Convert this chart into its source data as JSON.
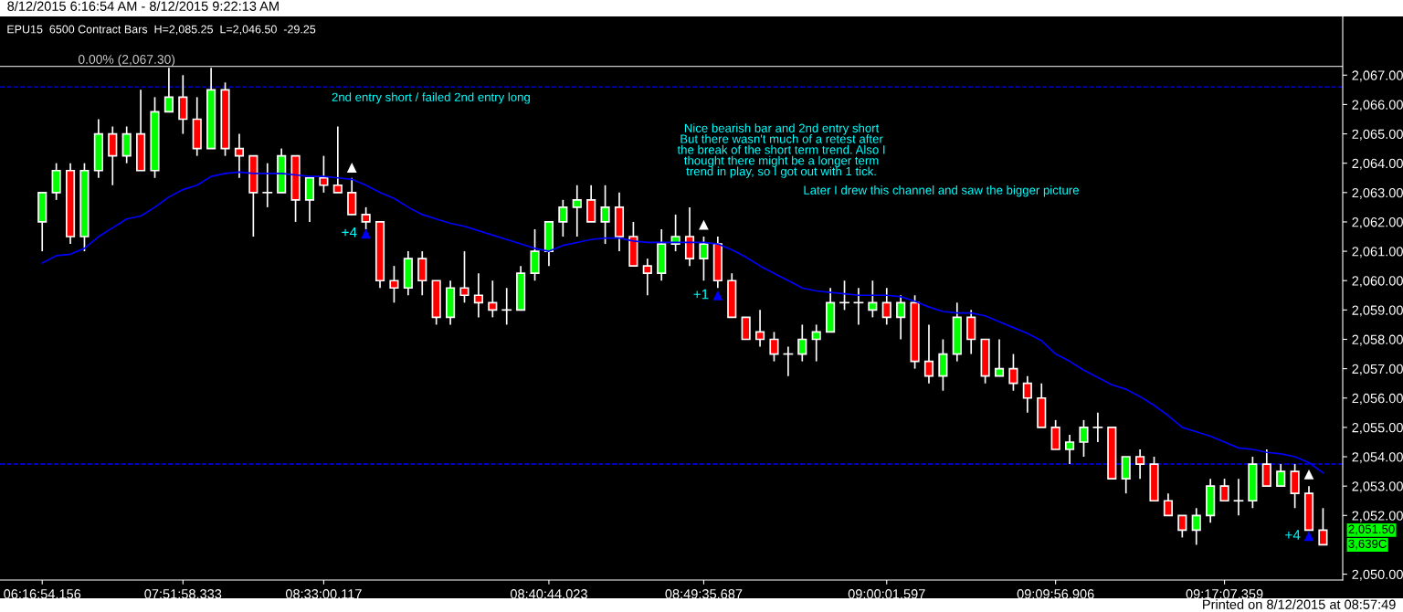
{
  "chart_data": {
    "type": "candlestick",
    "title": "8/12/2015 6:16:54 AM - 8/12/2015 9:22:13 AM",
    "subtitle": "EPU15  6500 Contract Bars  H=2,085.25  L=2,046.50  -29.25",
    "categories": [
      "06:16:54.156",
      null,
      null,
      null,
      null,
      null,
      null,
      null,
      null,
      null,
      "07:51:58.333",
      null,
      null,
      null,
      null,
      null,
      null,
      null,
      null,
      null,
      "08:33:00.117",
      null,
      null,
      null,
      null,
      null,
      null,
      null,
      null,
      null,
      null,
      null,
      null,
      null,
      null,
      null,
      "08:40:44.023",
      null,
      null,
      null,
      null,
      null,
      null,
      null,
      null,
      null,
      null,
      "08:49:35.687",
      null,
      null,
      null,
      null,
      null,
      null,
      null,
      null,
      null,
      null,
      null,
      null,
      "09:00:01.597",
      null,
      null,
      null,
      null,
      null,
      null,
      null,
      null,
      null,
      null,
      null,
      "09:09:56.906",
      null,
      null,
      null,
      null,
      null,
      null,
      null,
      null,
      null,
      null,
      null,
      "09:17:07.359",
      null,
      null,
      null,
      null,
      null,
      null,
      null
    ],
    "ohlc": [
      [
        2062,
        2063,
        2061,
        2063
      ],
      [
        2063,
        2064,
        2062.75,
        2063.75
      ],
      [
        2063.75,
        2064,
        2061.25,
        2061.5
      ],
      [
        2061.5,
        2064,
        2061,
        2063.75
      ],
      [
        2063.75,
        2065.5,
        2063.5,
        2065
      ],
      [
        2065,
        2065.25,
        2063.25,
        2064.25
      ],
      [
        2064.25,
        2065.25,
        2064,
        2065
      ],
      [
        2065,
        2066.5,
        2063.75,
        2063.75
      ],
      [
        2063.75,
        2066.25,
        2063.5,
        2065.75
      ],
      [
        2065.75,
        2067.25,
        2065.75,
        2066.25
      ],
      [
        2066.25,
        2067,
        2065,
        2065.5
      ],
      [
        2065.5,
        2066.25,
        2064.25,
        2064.5
      ],
      [
        2064.5,
        2067.25,
        2064.5,
        2066.5
      ],
      [
        2066.5,
        2066.75,
        2064.25,
        2064.5
      ],
      [
        2064.5,
        2065,
        2063.5,
        2064.25
      ],
      [
        2064.25,
        2064.25,
        2061.5,
        2063
      ],
      [
        2063,
        2064,
        2062.5,
        2063
      ],
      [
        2063,
        2064.5,
        2063,
        2064.25
      ],
      [
        2064.25,
        2064.25,
        2062,
        2062.75
      ],
      [
        2062.75,
        2063.5,
        2062,
        2063.5
      ],
      [
        2063.5,
        2064.25,
        2063,
        2063.25
      ],
      [
        2063.25,
        2065.25,
        2063,
        2063
      ],
      [
        2063,
        2063.5,
        2062.25,
        2062.25
      ],
      [
        2062.25,
        2062.5,
        2061.75,
        2062
      ],
      [
        2062,
        2062,
        2059.75,
        2060
      ],
      [
        2060,
        2060.5,
        2059.25,
        2059.75
      ],
      [
        2059.75,
        2061,
        2059.5,
        2060.75
      ],
      [
        2060.75,
        2061,
        2059.5,
        2060
      ],
      [
        2060,
        2060,
        2058.5,
        2058.75
      ],
      [
        2058.75,
        2060,
        2058.5,
        2059.75
      ],
      [
        2059.75,
        2061,
        2059.25,
        2059.5
      ],
      [
        2059.5,
        2060.25,
        2058.75,
        2059.25
      ],
      [
        2059.25,
        2060,
        2058.75,
        2059
      ],
      [
        2059,
        2059.75,
        2058.5,
        2059
      ],
      [
        2059,
        2060.5,
        2059,
        2060.25
      ],
      [
        2060.25,
        2061.75,
        2060,
        2061
      ],
      [
        2061,
        2062,
        2060.5,
        2062
      ],
      [
        2062,
        2062.75,
        2061.5,
        2062.5
      ],
      [
        2062.5,
        2063.25,
        2061.5,
        2062.75
      ],
      [
        2062.75,
        2063.25,
        2062,
        2062
      ],
      [
        2062,
        2063.25,
        2061.25,
        2062.5
      ],
      [
        2062.5,
        2063,
        2061,
        2061.5
      ],
      [
        2061.5,
        2062,
        2060.5,
        2060.5
      ],
      [
        2060.5,
        2060.75,
        2059.5,
        2060.25
      ],
      [
        2060.25,
        2061.75,
        2060,
        2061.25
      ],
      [
        2061.25,
        2062.25,
        2061,
        2061.5
      ],
      [
        2061.5,
        2062.5,
        2060.5,
        2060.75
      ],
      [
        2060.75,
        2061.5,
        2060,
        2061.25
      ],
      [
        2061.25,
        2061.5,
        2059.75,
        2060
      ],
      [
        2060,
        2060.25,
        2058.75,
        2058.75
      ],
      [
        2058.75,
        2058.75,
        2058,
        2058
      ],
      [
        2058.25,
        2059,
        2057.75,
        2058
      ],
      [
        2058,
        2058.25,
        2057.25,
        2057.5
      ],
      [
        2057.5,
        2057.75,
        2056.75,
        2057.5
      ],
      [
        2057.5,
        2058.5,
        2057.25,
        2058
      ],
      [
        2058,
        2058.5,
        2057.25,
        2058.25
      ],
      [
        2058.25,
        2059.75,
        2058.25,
        2059.25
      ],
      [
        2059.25,
        2060,
        2059,
        2059.25
      ],
      [
        2059.25,
        2059.75,
        2058.5,
        2059.25
      ],
      [
        2059,
        2060,
        2058.75,
        2059.25
      ],
      [
        2059.25,
        2059.75,
        2058.5,
        2058.75
      ],
      [
        2058.75,
        2059.5,
        2058,
        2059.25
      ],
      [
        2059.25,
        2059.5,
        2057,
        2057.25
      ],
      [
        2057.25,
        2058.5,
        2056.5,
        2056.75
      ],
      [
        2056.75,
        2058,
        2056.25,
        2057.5
      ],
      [
        2057.5,
        2059.25,
        2057.25,
        2058.75
      ],
      [
        2058.75,
        2059,
        2057.5,
        2058
      ],
      [
        2058,
        2058,
        2056.5,
        2056.75
      ],
      [
        2056.75,
        2058,
        2056.75,
        2057
      ],
      [
        2057,
        2057.5,
        2056.25,
        2056.5
      ],
      [
        2056.5,
        2056.75,
        2055.5,
        2056
      ],
      [
        2056,
        2056.5,
        2055,
        2055
      ],
      [
        2055,
        2055.25,
        2054.25,
        2054.25
      ],
      [
        2054.25,
        2054.75,
        2053.75,
        2054.5
      ],
      [
        2054.5,
        2055.25,
        2054,
        2055
      ],
      [
        2055,
        2055.5,
        2054.5,
        2055
      ],
      [
        2055,
        2055,
        2053.25,
        2053.25
      ],
      [
        2053.25,
        2054,
        2052.75,
        2054
      ],
      [
        2054,
        2054.25,
        2053.25,
        2053.75
      ],
      [
        2053.75,
        2054,
        2052.5,
        2052.5
      ],
      [
        2052.5,
        2052.75,
        2052,
        2052
      ],
      [
        2052,
        2052,
        2051.25,
        2051.5
      ],
      [
        2051.5,
        2052.25,
        2051,
        2052
      ],
      [
        2052,
        2053.25,
        2051.75,
        2053
      ],
      [
        2053,
        2053.25,
        2052.5,
        2052.5
      ],
      [
        2052.5,
        2053.25,
        2052,
        2052.5
      ],
      [
        2052.5,
        2054,
        2052.25,
        2053.75
      ],
      [
        2053.75,
        2054.25,
        2053,
        2053
      ],
      [
        2053,
        2053.75,
        2053,
        2053.5
      ],
      [
        2053.5,
        2053.75,
        2052.25,
        2052.75
      ],
      [
        2052.75,
        2053,
        2051.5,
        2051.5
      ],
      [
        2051.5,
        2052.25,
        2051,
        2051
      ]
    ],
    "colors": [
      "#00ff00",
      "#00ff00",
      "#ff0000",
      "#00ff00",
      "#00ff00",
      "#ff0000",
      "#00ff00",
      "#ff0000",
      "#00ff00",
      "#00ff00",
      "#ff0000",
      "#ff0000",
      "#00ff00",
      "#ff0000",
      "#ff0000",
      "#ff0000",
      "#ffffff",
      "#00ff00",
      "#ff0000",
      "#00ff00",
      "#ff0000",
      "#ff0000",
      "#ff0000",
      "#ff0000",
      "#ff0000",
      "#ff0000",
      "#00ff00",
      "#ff0000",
      "#ff0000",
      "#00ff00",
      "#ff0000",
      "#ff0000",
      "#ff0000",
      "#ffffff",
      "#00ff00",
      "#00ff00",
      "#00ff00",
      "#00ff00",
      "#00ff00",
      "#ff0000",
      "#00ff00",
      "#ff0000",
      "#ff0000",
      "#ff0000",
      "#00ff00",
      "#00ff00",
      "#ff0000",
      "#00ff00",
      "#ff0000",
      "#ff0000",
      "#ff0000",
      "#ff0000",
      "#ff0000",
      "#ffffff",
      "#00ff00",
      "#00ff00",
      "#00ff00",
      "#ffffff",
      "#ffffff",
      "#00ff00",
      "#ff0000",
      "#00ff00",
      "#ff0000",
      "#ff0000",
      "#00ff00",
      "#00ff00",
      "#ff0000",
      "#ff0000",
      "#00ff00",
      "#ff0000",
      "#ff0000",
      "#ff0000",
      "#ff0000",
      "#00ff00",
      "#00ff00",
      "#ffffff",
      "#ff0000",
      "#00ff00",
      "#ff0000",
      "#ff0000",
      "#ff0000",
      "#ff0000",
      "#00ff00",
      "#00ff00",
      "#ff0000",
      "#ffffff",
      "#00ff00",
      "#ff0000",
      "#00ff00",
      "#ff0000",
      "#ff0000",
      "#ff0000"
    ],
    "series": [
      {
        "type": "line",
        "color": "#0000ff",
        "values": [
          2060.6,
          2060.85,
          2060.9,
          2061.1,
          2061.5,
          2061.8,
          2062.1,
          2062.2,
          2062.5,
          2062.85,
          2063.1,
          2063.25,
          2063.55,
          2063.65,
          2063.7,
          2063.65,
          2063.65,
          2063.65,
          2063.6,
          2063.55,
          2063.55,
          2063.5,
          2063.45,
          2063.25,
          2063.0,
          2062.8,
          2062.5,
          2062.25,
          2062.1,
          2061.95,
          2061.85,
          2061.7,
          2061.55,
          2061.4,
          2061.25,
          2061.1,
          2061.0,
          2061.2,
          2061.3,
          2061.4,
          2061.45,
          2061.45,
          2061.35,
          2061.3,
          2061.3,
          2061.3,
          2061.3,
          2061.3,
          2061.25,
          2061.05,
          2060.8,
          2060.5,
          2060.25,
          2060.0,
          2059.75,
          2059.65,
          2059.6,
          2059.55,
          2059.5,
          2059.5,
          2059.5,
          2059.45,
          2059.3,
          2059.1,
          2058.95,
          2058.9,
          2058.9,
          2058.8,
          2058.6,
          2058.4,
          2058.2,
          2057.95,
          2057.5,
          2057.25,
          2056.95,
          2056.7,
          2056.45,
          2056.3,
          2056.05,
          2055.75,
          2055.4,
          2055.0,
          2054.85,
          2054.7,
          2054.5,
          2054.3,
          2054.25,
          2054.15,
          2054.1,
          2054.0,
          2053.8,
          2053.45
        ]
      },
      {
        "type": "scatter",
        "color": "#0000ff",
        "marker": "triangle",
        "values": [
          null,
          null,
          null,
          null,
          null,
          null,
          null,
          null,
          null,
          null,
          null,
          null,
          null,
          null,
          null,
          null,
          null,
          null,
          null,
          null,
          null,
          null,
          null,
          2061.6,
          null,
          null,
          null,
          null,
          null,
          null,
          null,
          null,
          null,
          null,
          null,
          null,
          null,
          null,
          null,
          null,
          null,
          null,
          null,
          null,
          null,
          null,
          null,
          null,
          2059.5,
          null,
          null,
          null,
          null,
          null,
          null,
          null,
          null,
          null,
          null,
          null,
          null,
          null,
          null,
          null,
          null,
          null,
          null,
          null,
          null,
          null,
          null,
          null,
          null,
          null,
          null,
          null,
          null,
          null,
          null,
          null,
          null,
          null,
          null,
          null,
          null,
          null,
          null,
          null,
          null,
          null,
          2051.3,
          null
        ]
      },
      {
        "type": "scatter",
        "color": "#ffffff",
        "marker": "triangle",
        "values": [
          null,
          null,
          null,
          null,
          null,
          null,
          null,
          null,
          null,
          null,
          null,
          null,
          null,
          null,
          null,
          null,
          null,
          null,
          null,
          null,
          null,
          null,
          2063.85,
          null,
          null,
          null,
          null,
          null,
          null,
          null,
          null,
          null,
          null,
          null,
          null,
          null,
          null,
          null,
          null,
          null,
          null,
          null,
          null,
          null,
          null,
          null,
          null,
          2061.9,
          null,
          null,
          null,
          null,
          null,
          null,
          null,
          null,
          null,
          null,
          null,
          null,
          null,
          null,
          null,
          null,
          null,
          null,
          null,
          null,
          null,
          null,
          null,
          null,
          null,
          null,
          null,
          null,
          null,
          null,
          null,
          null,
          null,
          null,
          null,
          null,
          null,
          null,
          null,
          null,
          null,
          null,
          2053.4,
          null
        ]
      }
    ],
    "ylim": [
      2049.8,
      2069
    ],
    "yticks": [
      {
        "value": 2050,
        "label": "2,050.00"
      },
      {
        "value": 2052,
        "label": "2,052.00"
      },
      {
        "value": 2053,
        "label": "2,053.00"
      },
      {
        "value": 2054,
        "label": "2,054.00"
      },
      {
        "value": 2055,
        "label": "2,055.00"
      },
      {
        "value": 2056,
        "label": "2,056.00"
      },
      {
        "value": 2057,
        "label": "2,057.00"
      },
      {
        "value": 2058,
        "label": "2,058.00"
      },
      {
        "value": 2059,
        "label": "2,059.00"
      },
      {
        "value": 2060,
        "label": "2,060.00"
      },
      {
        "value": 2061,
        "label": "2,061.00"
      },
      {
        "value": 2062,
        "label": "2,062.00"
      },
      {
        "value": 2063,
        "label": "2,063.00"
      },
      {
        "value": 2064,
        "label": "2,064.00"
      },
      {
        "value": 2065,
        "label": "2,065.00"
      },
      {
        "value": 2066,
        "label": "2,066.00"
      },
      {
        "value": 2067,
        "label": "2,067.00"
      }
    ],
    "ref_lines": [
      {
        "axis": "y",
        "value": 2067.3,
        "label": "0.00% (2,067.30)",
        "color": "#c8c8c8",
        "line_style": "solid"
      },
      {
        "axis": "y",
        "value": 2066.6,
        "color": "#0000ff",
        "line_style": "dashed"
      },
      {
        "axis": "y",
        "value": 2053.75,
        "color": "#0000ff",
        "line_style": "dashed"
      }
    ],
    "annotations": [
      "2nd entry short / failed 2nd entry long",
      "Nice bearish bar and 2nd entry short\nBut there wasn't much of a retest after\nthe break of the short term trend. Also I\nthought there might be a longer term\ntrend in play, so I got out with 1 tick.",
      "Later I drew this channel and saw the bigger picture",
      "+4",
      "+1",
      "+4",
      "2,051.50",
      "3,639C",
      "Printed on 8/12/2015 at 08:57:49"
    ],
    "grid": false,
    "legend": false
  }
}
